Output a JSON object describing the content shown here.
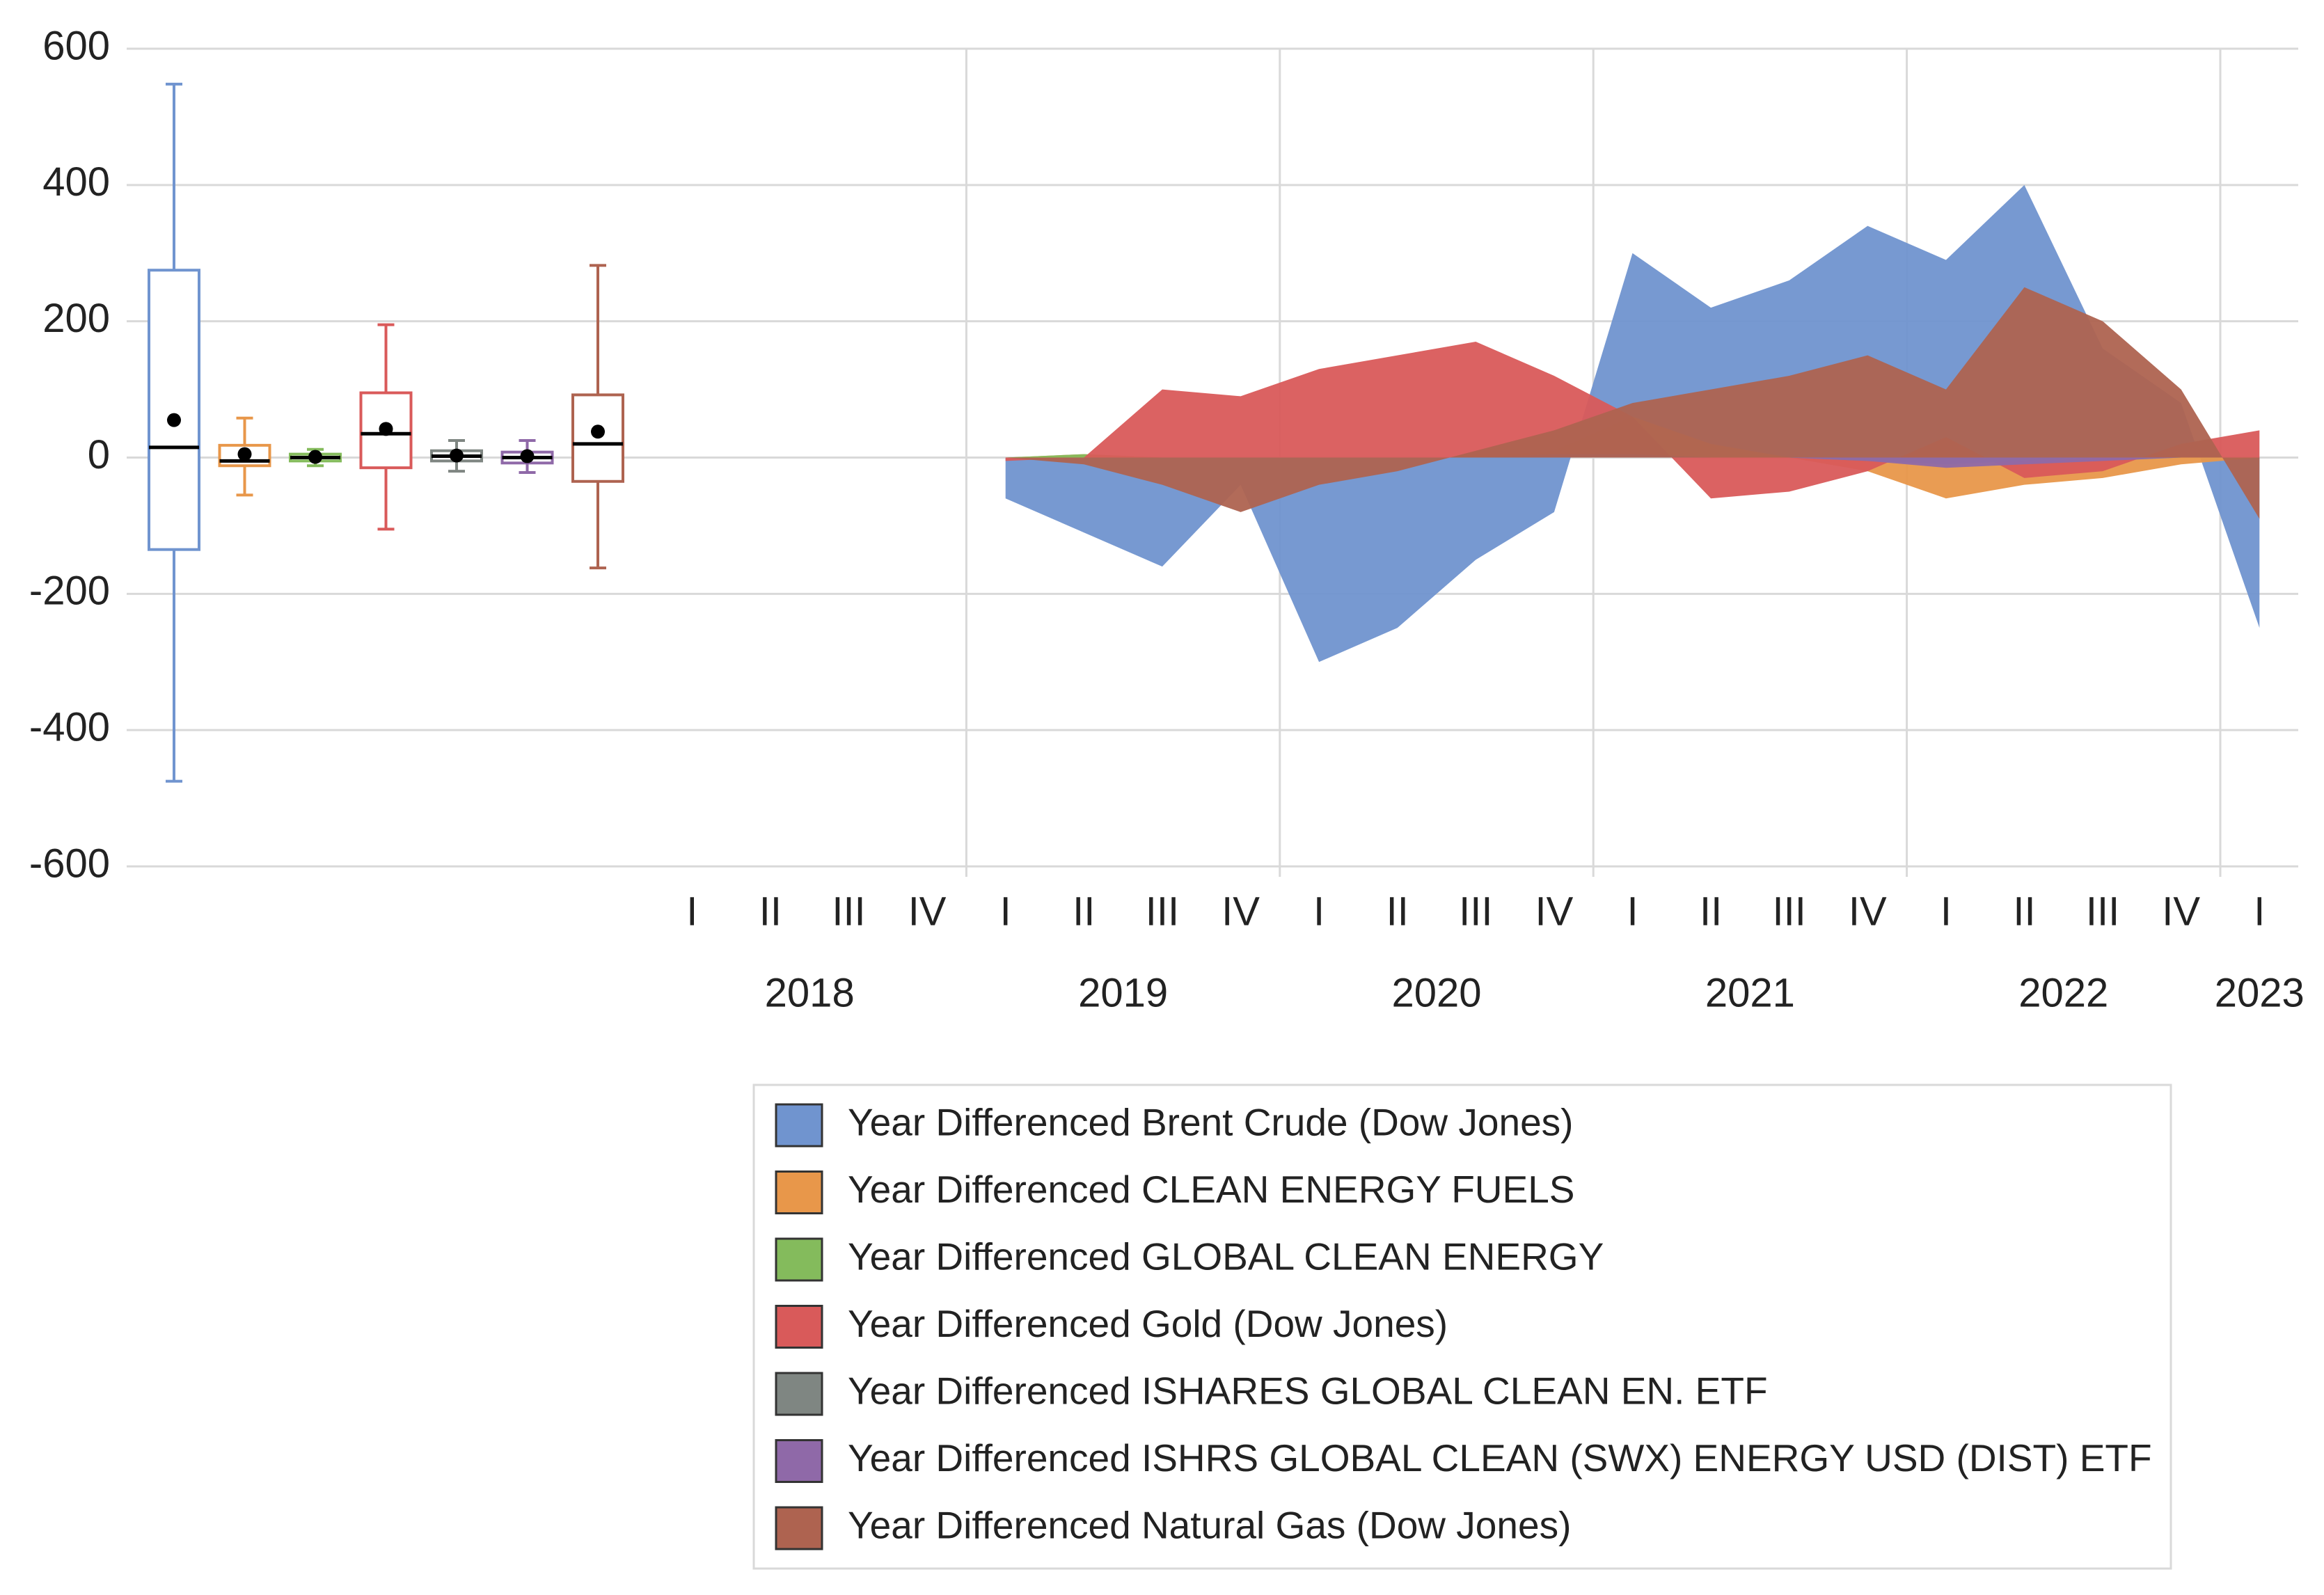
{
  "chart_data": {
    "type": "box-and-area",
    "ylim": [
      -600,
      600
    ],
    "yticks": [
      -600,
      -400,
      -200,
      0,
      200,
      400,
      600
    ],
    "grid": true,
    "x_groups": [
      {
        "label": "2018",
        "categories": [
          "I",
          "II",
          "III",
          "IV"
        ]
      },
      {
        "label": "2019",
        "categories": [
          "I",
          "II",
          "III",
          "IV"
        ]
      },
      {
        "label": "2020",
        "categories": [
          "I",
          "II",
          "III",
          "IV"
        ]
      },
      {
        "label": "2021",
        "categories": [
          "I",
          "II",
          "III",
          "IV"
        ]
      },
      {
        "label": "2022",
        "categories": [
          "I",
          "II",
          "III",
          "IV"
        ]
      },
      {
        "label": "2023",
        "categories": [
          "I"
        ]
      }
    ],
    "series": [
      {
        "name": "Year Differenced Brent Crude (Dow Jones)",
        "color": "#7094cf",
        "values": [
          null,
          null,
          null,
          null,
          -60,
          -110,
          -160,
          -40,
          -300,
          -250,
          -150,
          -80,
          300,
          220,
          260,
          340,
          290,
          400,
          160,
          80,
          -250
        ],
        "box": {
          "min": -475,
          "q1": -135,
          "median": 15,
          "q3": 275,
          "max": 548,
          "mean": 55
        }
      },
      {
        "name": "Year Differenced CLEAN ENERGY FUELS",
        "color": "#e8974a",
        "values": [
          null,
          null,
          null,
          null,
          0,
          5,
          0,
          0,
          0,
          0,
          0,
          10,
          60,
          20,
          0,
          -20,
          -60,
          -40,
          -30,
          -10,
          0
        ],
        "box": {
          "min": -55,
          "q1": -12,
          "median": -5,
          "q3": 18,
          "max": 58,
          "mean": 5
        }
      },
      {
        "name": "Year Differenced GLOBAL CLEAN ENERGY",
        "color": "#84bb5c",
        "values": [
          null,
          null,
          null,
          null,
          0,
          5,
          0,
          0,
          0,
          0,
          0,
          5,
          5,
          0,
          0,
          -5,
          -10,
          -5,
          -5,
          0,
          0
        ],
        "box": {
          "min": -12,
          "q1": -5,
          "median": 0,
          "q3": 5,
          "max": 12,
          "mean": 1
        }
      },
      {
        "name": "Year Differenced Gold  (Dow Jones)",
        "color": "#d95a5a",
        "values": [
          null,
          null,
          null,
          null,
          -5,
          0,
          100,
          90,
          130,
          150,
          170,
          120,
          60,
          -60,
          -50,
          -20,
          30,
          -30,
          -20,
          20,
          40
        ],
        "box": {
          "min": -105,
          "q1": -15,
          "median": 35,
          "q3": 95,
          "max": 195,
          "mean": 42
        }
      },
      {
        "name": "Year Differenced ISHARES GLOBAL CLEAN EN. ETF",
        "color": "#7f8682",
        "values": [
          null,
          null,
          null,
          null,
          0,
          0,
          0,
          0,
          0,
          0,
          0,
          5,
          5,
          0,
          0,
          -5,
          -10,
          -5,
          0,
          0,
          0
        ],
        "box": {
          "min": -20,
          "q1": -5,
          "median": 2,
          "q3": 10,
          "max": 25,
          "mean": 3
        }
      },
      {
        "name": "Year Differenced ISHRS GLOBAL CLEAN (SWX) ENERGY USD (DIST) ETF",
        "color": "#8f69a8",
        "values": [
          null,
          null,
          null,
          null,
          0,
          0,
          0,
          0,
          0,
          0,
          0,
          5,
          5,
          0,
          0,
          -5,
          -15,
          -10,
          -5,
          0,
          0
        ],
        "box": {
          "min": -22,
          "q1": -8,
          "median": 0,
          "q3": 8,
          "max": 25,
          "mean": 2
        }
      },
      {
        "name": "Year Differenced Natural Gas (Dow Jones)",
        "color": "#ae6350",
        "values": [
          null,
          null,
          null,
          null,
          0,
          -10,
          -40,
          -80,
          -40,
          -20,
          10,
          40,
          80,
          100,
          120,
          150,
          100,
          250,
          200,
          100,
          -90
        ],
        "box": {
          "min": -162,
          "q1": -35,
          "median": 20,
          "q3": 92,
          "max": 282,
          "mean": 38
        }
      }
    ]
  }
}
